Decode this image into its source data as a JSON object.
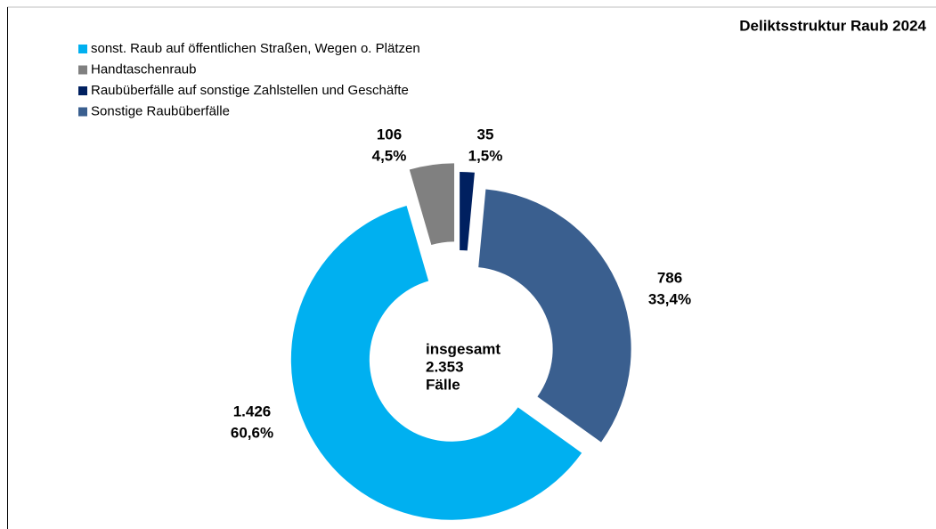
{
  "chart_data": {
    "type": "pie",
    "donut": true,
    "title": "Deliktsstruktur Raub 2024",
    "center_text": [
      "insgesamt",
      "2.353",
      "Fälle"
    ],
    "categories": [
      "sonst. Raub auf öffentlichen Straßen, Wegen o. Plätzen",
      "Handtaschenraub",
      "Raubüberfälle auf sonstige Zahlstellen und Geschäfte",
      "Sonstige Raubüberfälle"
    ],
    "values": [
      1426,
      106,
      35,
      786
    ],
    "value_labels": [
      "1.426",
      "106",
      "35",
      "786"
    ],
    "percentages": [
      60.6,
      4.5,
      1.5,
      33.4
    ],
    "percentage_labels": [
      "60,6%",
      "4,5%",
      "1,5%",
      "33,4%"
    ],
    "colors": [
      "#00b0f0",
      "#808080",
      "#002060",
      "#3a5f8f"
    ],
    "legend": "top-left"
  }
}
